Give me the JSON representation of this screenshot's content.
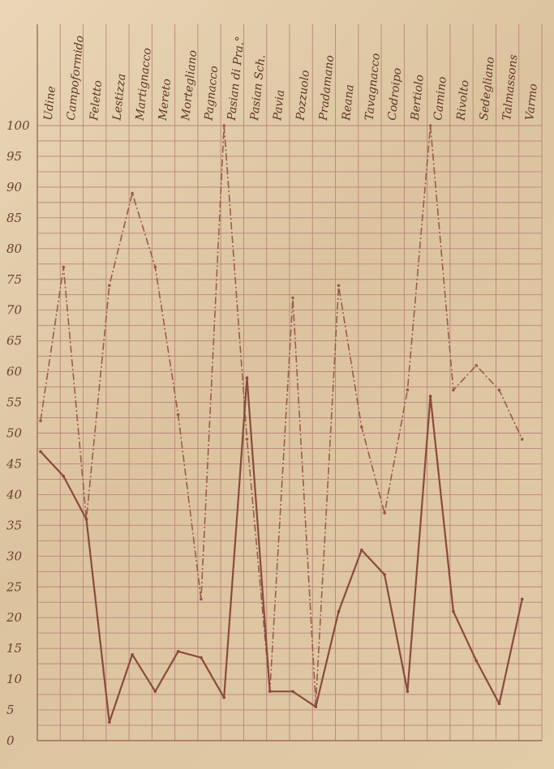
{
  "chart_data": {
    "type": "line",
    "categories": [
      "Udine",
      "Campoformido",
      "Feletto",
      "Lestizza",
      "Martignacco",
      "Mereto",
      "Mortegliano",
      "Pagnacco",
      "Pasian di Pra.°",
      "Pasian Sch.",
      "Pavia",
      "Pozzuolo",
      "Pradamano",
      "Reana",
      "Tavagnacco",
      "Codroipo",
      "Bertiolo",
      "Camino",
      "Rivolto",
      "Sedegliano",
      "Talmassons",
      "Varmo"
    ],
    "series": [
      {
        "style": "dash-dot",
        "values": [
          52,
          77,
          36,
          74,
          89,
          77,
          53,
          23,
          100,
          49,
          8,
          72,
          6,
          74,
          51,
          37,
          57,
          100,
          57,
          61,
          57,
          49
        ]
      },
      {
        "style": "solid",
        "values": [
          47,
          43,
          36,
          3,
          14,
          8,
          14.5,
          13.5,
          7,
          59,
          8,
          8,
          5.5,
          21,
          31,
          27,
          8,
          56,
          21,
          13,
          6,
          23
        ]
      }
    ],
    "yticks": [
      0,
      5,
      10,
      15,
      20,
      25,
      30,
      35,
      40,
      45,
      50,
      55,
      60,
      65,
      70,
      75,
      80,
      85,
      90,
      95,
      100
    ],
    "ylim": [
      0,
      100
    ],
    "grid": true,
    "colors": {
      "line": "#8a4a3c",
      "grid": "#b9857a",
      "paper": "#e3cfae"
    }
  }
}
